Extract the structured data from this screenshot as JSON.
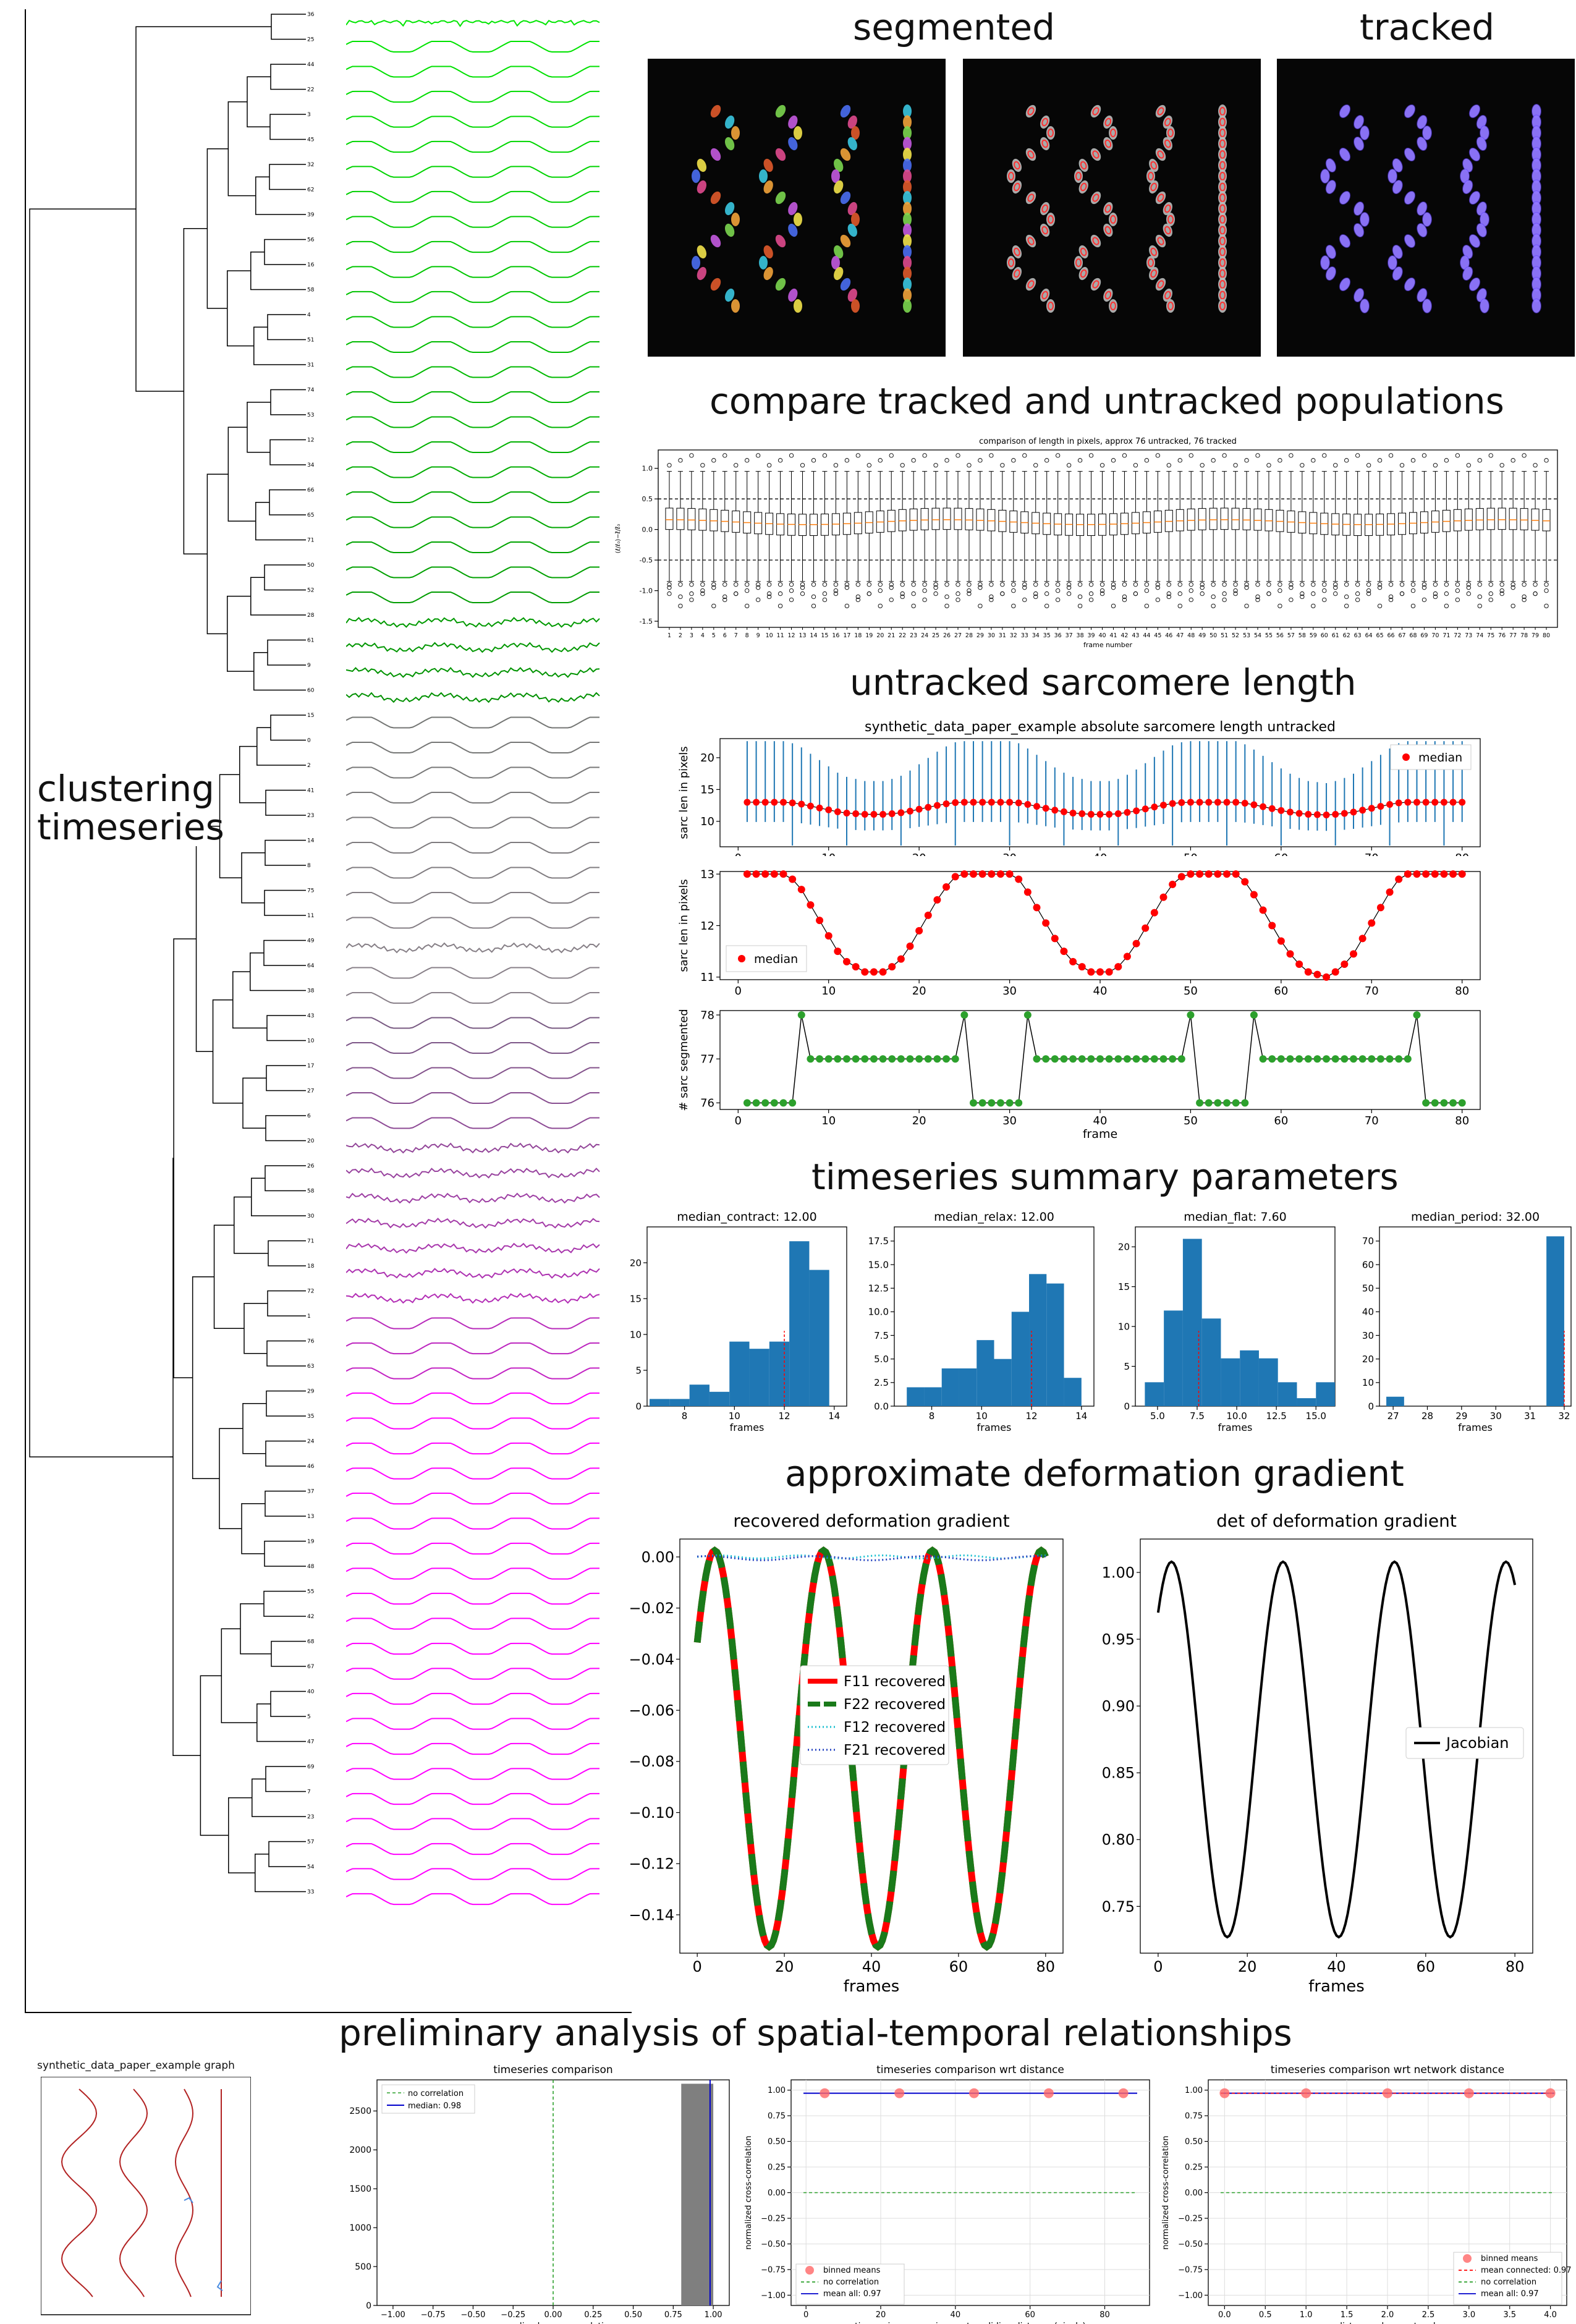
{
  "colors": {
    "bar": "#1f77b4",
    "median": "#ff0000",
    "green": "#00aa00",
    "purple": "#8800aa",
    "magenta": "#ff00ff",
    "dendro": "#000000"
  },
  "dendrogram": {
    "title": "clustering\ntimeseries",
    "leaves": [
      "36",
      "25",
      "44",
      "22",
      "3",
      "45",
      "32",
      "62",
      "39",
      "56",
      "16",
      "58",
      "4",
      "51",
      "31",
      "74",
      "53",
      "12",
      "34",
      "66",
      "65",
      "71",
      "50",
      "52",
      "28",
      "61",
      "9",
      "60",
      "15",
      "0",
      "2",
      "41",
      "23",
      "14",
      "8",
      "75",
      "11",
      "49",
      "64",
      "38",
      "43",
      "10",
      "17",
      "27",
      "6",
      "20",
      "26",
      "58",
      "30",
      "71",
      "18",
      "72",
      "1",
      "76",
      "63",
      "29",
      "35",
      "24",
      "46",
      "37",
      "13",
      "19",
      "48",
      "55",
      "42",
      "68",
      "67",
      "40",
      "5",
      "47",
      "69",
      "7",
      "23",
      "57",
      "54",
      "33"
    ]
  },
  "segment": {
    "title_left": "segmented",
    "title_right": "tracked"
  },
  "compare": {
    "title": "compare tracked and untracked populations",
    "chart_data": {
      "type": "box",
      "title": "comparison of length in pixels, approx 76 untracked, 76 tracked",
      "xlabel": "frame number",
      "ylabel": "(ℓ/ℓ₀)−ℓ̄/ℓ̄₀",
      "yticks": [
        "1.0",
        "0.5",
        "0.0",
        "-0.5",
        "-1.0",
        "-1.5"
      ],
      "ylim": [
        -1.6,
        1.3
      ],
      "categories": [
        "1",
        "2",
        "3",
        "4",
        "5",
        "6",
        "7",
        "8",
        "9",
        "10",
        "11",
        "12",
        "13",
        "14",
        "15",
        "16",
        "17",
        "18",
        "19",
        "20",
        "21",
        "22",
        "23",
        "24",
        "25",
        "26",
        "27",
        "28",
        "29",
        "30",
        "31",
        "32",
        "33",
        "34",
        "35",
        "36",
        "37",
        "38",
        "39",
        "40",
        "41",
        "42",
        "43",
        "44",
        "45",
        "46",
        "47",
        "48",
        "49",
        "50",
        "51",
        "52",
        "53",
        "54",
        "55",
        "56",
        "57",
        "58",
        "59",
        "60",
        "61",
        "62",
        "63",
        "64",
        "65",
        "66",
        "67",
        "68",
        "69",
        "70",
        "71",
        "72",
        "73",
        "74",
        "75",
        "76",
        "77",
        "78",
        "79",
        "80"
      ],
      "hlines": [
        0.5,
        -0.5
      ]
    }
  },
  "untracked": {
    "title": "untracked sarcomere length",
    "chart1": {
      "type": "errorbar",
      "title": "synthetic_data_paper_example absolute sarcomere length untracked",
      "ylabel": "sarc len in pixels",
      "legend": "median",
      "yticks": [
        "10",
        "15",
        "20"
      ],
      "xticks": [
        "0",
        "10",
        "20",
        "30",
        "40",
        "50",
        "60",
        "70",
        "80"
      ],
      "ylim": [
        6,
        23
      ],
      "xlim": [
        -2,
        82
      ]
    },
    "chart2": {
      "type": "line",
      "ylabel": "sarc len in pixels",
      "legend": "median",
      "yticks": [
        "11",
        "12",
        "13"
      ],
      "xticks": [
        "0",
        "10",
        "20",
        "30",
        "40",
        "50",
        "60",
        "70",
        "80"
      ],
      "ylim": [
        10.95,
        13.05
      ],
      "xlim": [
        -2,
        82
      ],
      "x": [
        1,
        2,
        3,
        4,
        5,
        6,
        7,
        8,
        9,
        10,
        11,
        12,
        13,
        14,
        15,
        16,
        17,
        18,
        19,
        20,
        21,
        22,
        23,
        24,
        25,
        26,
        27,
        28,
        29,
        30,
        31,
        32,
        33,
        34,
        35,
        36,
        37,
        38,
        39,
        40,
        41,
        42,
        43,
        44,
        45,
        46,
        47,
        48,
        49,
        50,
        51,
        52,
        53,
        54,
        55,
        56,
        57,
        58,
        59,
        60,
        61,
        62,
        63,
        64,
        65,
        66,
        67,
        68,
        69,
        70,
        71,
        72,
        73,
        74,
        75,
        76,
        77,
        78,
        79,
        80
      ],
      "y": [
        13,
        13,
        13,
        13,
        13,
        12.9,
        12.7,
        12.4,
        12.1,
        11.8,
        11.5,
        11.3,
        11.2,
        11.1,
        11.1,
        11.1,
        11.2,
        11.35,
        11.6,
        11.9,
        12.2,
        12.5,
        12.75,
        12.95,
        13,
        13,
        13,
        13,
        13,
        13,
        12.9,
        12.65,
        12.35,
        12.05,
        11.75,
        11.5,
        11.3,
        11.2,
        11.1,
        11.1,
        11.1,
        11.2,
        11.4,
        11.65,
        11.95,
        12.25,
        12.55,
        12.8,
        12.95,
        13,
        13,
        13,
        13,
        13,
        13,
        12.85,
        12.6,
        12.3,
        12,
        11.7,
        11.45,
        11.25,
        11.1,
        11.05,
        11,
        11.1,
        11.25,
        11.45,
        11.75,
        12.05,
        12.35,
        12.65,
        12.9,
        13,
        13,
        13,
        13,
        13,
        13,
        13
      ]
    },
    "chart3": {
      "type": "line",
      "ylabel": "# sarc segmented",
      "xlabel": "frame",
      "yticks": [
        "76",
        "77",
        "78"
      ],
      "xticks": [
        "0",
        "10",
        "20",
        "30",
        "40",
        "50",
        "60",
        "70",
        "80"
      ],
      "ylim": [
        75.85,
        78.1
      ],
      "xlim": [
        -2,
        82
      ],
      "x": [
        1,
        2,
        3,
        4,
        5,
        6,
        7,
        8,
        9,
        10,
        11,
        12,
        13,
        14,
        15,
        16,
        17,
        18,
        19,
        20,
        21,
        22,
        23,
        24,
        25,
        26,
        27,
        28,
        29,
        30,
        31,
        32,
        33,
        34,
        35,
        36,
        37,
        38,
        39,
        40,
        41,
        42,
        43,
        44,
        45,
        46,
        47,
        48,
        49,
        50,
        51,
        52,
        53,
        54,
        55,
        56,
        57,
        58,
        59,
        60,
        61,
        62,
        63,
        64,
        65,
        66,
        67,
        68,
        69,
        70,
        71,
        72,
        73,
        74,
        75,
        76,
        77,
        78,
        79,
        80
      ],
      "y": [
        76,
        76,
        76,
        76,
        76,
        76,
        78,
        77,
        77,
        77,
        77,
        77,
        77,
        77,
        77,
        77,
        77,
        77,
        77,
        77,
        77,
        77,
        77,
        77,
        78,
        76,
        76,
        76,
        76,
        76,
        76,
        78,
        77,
        77,
        77,
        77,
        77,
        77,
        77,
        77,
        77,
        77,
        77,
        77,
        77,
        77,
        77,
        77,
        77,
        78,
        76,
        76,
        76,
        76,
        76,
        76,
        78,
        77,
        77,
        77,
        77,
        77,
        77,
        77,
        77,
        77,
        77,
        77,
        77,
        77,
        77,
        77,
        77,
        77,
        78,
        76,
        76,
        76,
        76,
        76
      ]
    }
  },
  "summary": {
    "title": "timeseries summary parameters",
    "hists": [
      {
        "type": "bar",
        "title": "median_contract: 12.00",
        "xlabel": "frames",
        "xticks": [
          "8",
          "10",
          "12",
          "14"
        ],
        "xlim": [
          6.5,
          14.5
        ],
        "yticks": [
          "0",
          "5",
          "10",
          "15",
          "20"
        ],
        "ylim": [
          0,
          25
        ],
        "edges": [
          6.6,
          7.4,
          8.2,
          9.0,
          9.8,
          10.6,
          11.4,
          12.2,
          13.0,
          13.8
        ],
        "values": [
          1,
          1,
          3,
          2,
          9,
          8,
          9,
          23,
          19
        ],
        "marker": 12
      },
      {
        "type": "bar",
        "title": "median_relax: 12.00",
        "xlabel": "frames",
        "xticks": [
          "8",
          "10",
          "12",
          "14"
        ],
        "xlim": [
          6.5,
          14.5
        ],
        "yticks": [
          "0.0",
          "2.5",
          "5.0",
          "7.5",
          "10.0",
          "12.5",
          "15.0",
          "17.5"
        ],
        "ylim": [
          0,
          19
        ],
        "edges": [
          7.0,
          7.7,
          8.4,
          9.1,
          9.8,
          10.5,
          11.2,
          11.9,
          12.6,
          13.3,
          14.0
        ],
        "values": [
          2,
          2,
          4,
          4,
          7,
          5,
          10,
          14,
          13,
          3
        ],
        "marker": 12
      },
      {
        "type": "bar",
        "title": "median_flat: 7.60",
        "xlabel": "frames",
        "xticks": [
          "5.0",
          "7.5",
          "10.0",
          "12.5",
          "15.0"
        ],
        "xlim": [
          3.6,
          16.2
        ],
        "yticks": [
          "0",
          "5",
          "10",
          "15",
          "20"
        ],
        "ylim": [
          0,
          22.5
        ],
        "edges": [
          4.2,
          5.4,
          6.6,
          7.8,
          9.0,
          10.2,
          11.4,
          12.6,
          13.8,
          15.0,
          16.2
        ],
        "values": [
          3,
          12,
          21,
          11,
          6,
          7,
          6,
          3,
          1,
          3
        ],
        "marker": 7.6
      },
      {
        "type": "bar",
        "title": "median_period: 32.00",
        "xlabel": "frames",
        "xticks": [
          "27",
          "28",
          "29",
          "30",
          "31",
          "32"
        ],
        "xlim": [
          26.6,
          32.2
        ],
        "yticks": [
          "0",
          "10",
          "20",
          "30",
          "40",
          "50",
          "60",
          "70"
        ],
        "ylim": [
          0,
          76
        ],
        "edges": [
          26.8,
          27.32,
          31.48,
          32.0
        ],
        "values": [
          4,
          0,
          72
        ],
        "marker": 32
      }
    ]
  },
  "deform": {
    "title": "approximate deformation gradient",
    "chart1": {
      "type": "line",
      "title": "recovered deformation gradient",
      "xlabel": "frames",
      "xticks": [
        "0",
        "20",
        "40",
        "60",
        "80"
      ],
      "yticks": [
        "0.00",
        "−0.02",
        "−0.04",
        "−0.06",
        "−0.08",
        "−0.10",
        "−0.12",
        "−0.14"
      ],
      "xlim": [
        -4,
        84
      ],
      "ylim": [
        -0.155,
        0.007
      ],
      "series": [
        {
          "name": "F11 recovered"
        },
        {
          "name": "F22 recovered"
        },
        {
          "name": "F12 recovered"
        },
        {
          "name": "F21 recovered"
        }
      ]
    },
    "chart2": {
      "type": "line",
      "title": "det of deformation gradient",
      "xlabel": "frames",
      "xticks": [
        "0",
        "20",
        "40",
        "60",
        "80"
      ],
      "yticks": [
        "1.00",
        "0.95",
        "0.90",
        "0.85",
        "0.80",
        "0.75"
      ],
      "xlim": [
        -4,
        84
      ],
      "ylim": [
        0.715,
        1.025
      ],
      "series": [
        {
          "name": "Jacobian"
        }
      ]
    }
  },
  "spatial": {
    "title": "preliminary analysis of spatial-temporal relationships",
    "graph_title": "synthetic_data_paper_example graph",
    "hist": {
      "type": "bar",
      "title": "timeseries comparison",
      "xlabel": "normalized cross-correlation",
      "xticks": [
        "−1.00",
        "−0.75",
        "−0.50",
        "−0.25",
        "0.00",
        "0.25",
        "0.50",
        "0.75",
        "1.00"
      ],
      "yticks": [
        "0",
        "500",
        "1000",
        "1500",
        "2000",
        "2500"
      ],
      "xlim": [
        -1.1,
        1.1
      ],
      "ylim": [
        0,
        2900
      ],
      "legend": [
        "no correlation",
        "median: 0.98"
      ],
      "bars": [
        {
          "x0": 0.8,
          "x1": 1.0,
          "v": 2850
        }
      ]
    },
    "dist": {
      "type": "scatter",
      "title": "timeseries comparison wrt distance",
      "xlabel": "timeseries comparison wrt euclidian distance (pixels)",
      "ylabel": "normalized cross-correlation",
      "xticks": [
        "0",
        "20",
        "40",
        "60",
        "80"
      ],
      "yticks": [
        "1.00",
        "0.75",
        "0.50",
        "0.25",
        "0.00",
        "−0.25",
        "−0.50",
        "−0.75",
        "−1.00"
      ],
      "xlim": [
        -4,
        92
      ],
      "ylim": [
        -1.1,
        1.1
      ],
      "legend": [
        "binned means",
        "no correlation",
        "mean all: 0.97"
      ],
      "x": [
        5,
        25,
        45,
        65,
        85
      ],
      "y": [
        0.97,
        0.97,
        0.97,
        0.97,
        0.97
      ]
    },
    "net": {
      "type": "scatter",
      "title": "timeseries comparison wrt network distance",
      "xlabel": "distance along network",
      "ylabel": "normalized cross-correlation",
      "xticks": [
        "0.0",
        "0.5",
        "1.0",
        "1.5",
        "2.0",
        "2.5",
        "3.0",
        "3.5",
        "4.0"
      ],
      "yticks": [
        "1.00",
        "0.75",
        "0.50",
        "0.25",
        "0.00",
        "−0.25",
        "−0.50",
        "−0.75",
        "−1.00"
      ],
      "xlim": [
        -0.2,
        4.2
      ],
      "ylim": [
        -1.1,
        1.1
      ],
      "legend": [
        "binned means",
        "mean connected: 0.97",
        "no correlation",
        "mean all: 0.97"
      ],
      "x": [
        0,
        1,
        2,
        3,
        4
      ],
      "y": [
        0.97,
        0.97,
        0.97,
        0.97,
        0.97
      ]
    }
  }
}
